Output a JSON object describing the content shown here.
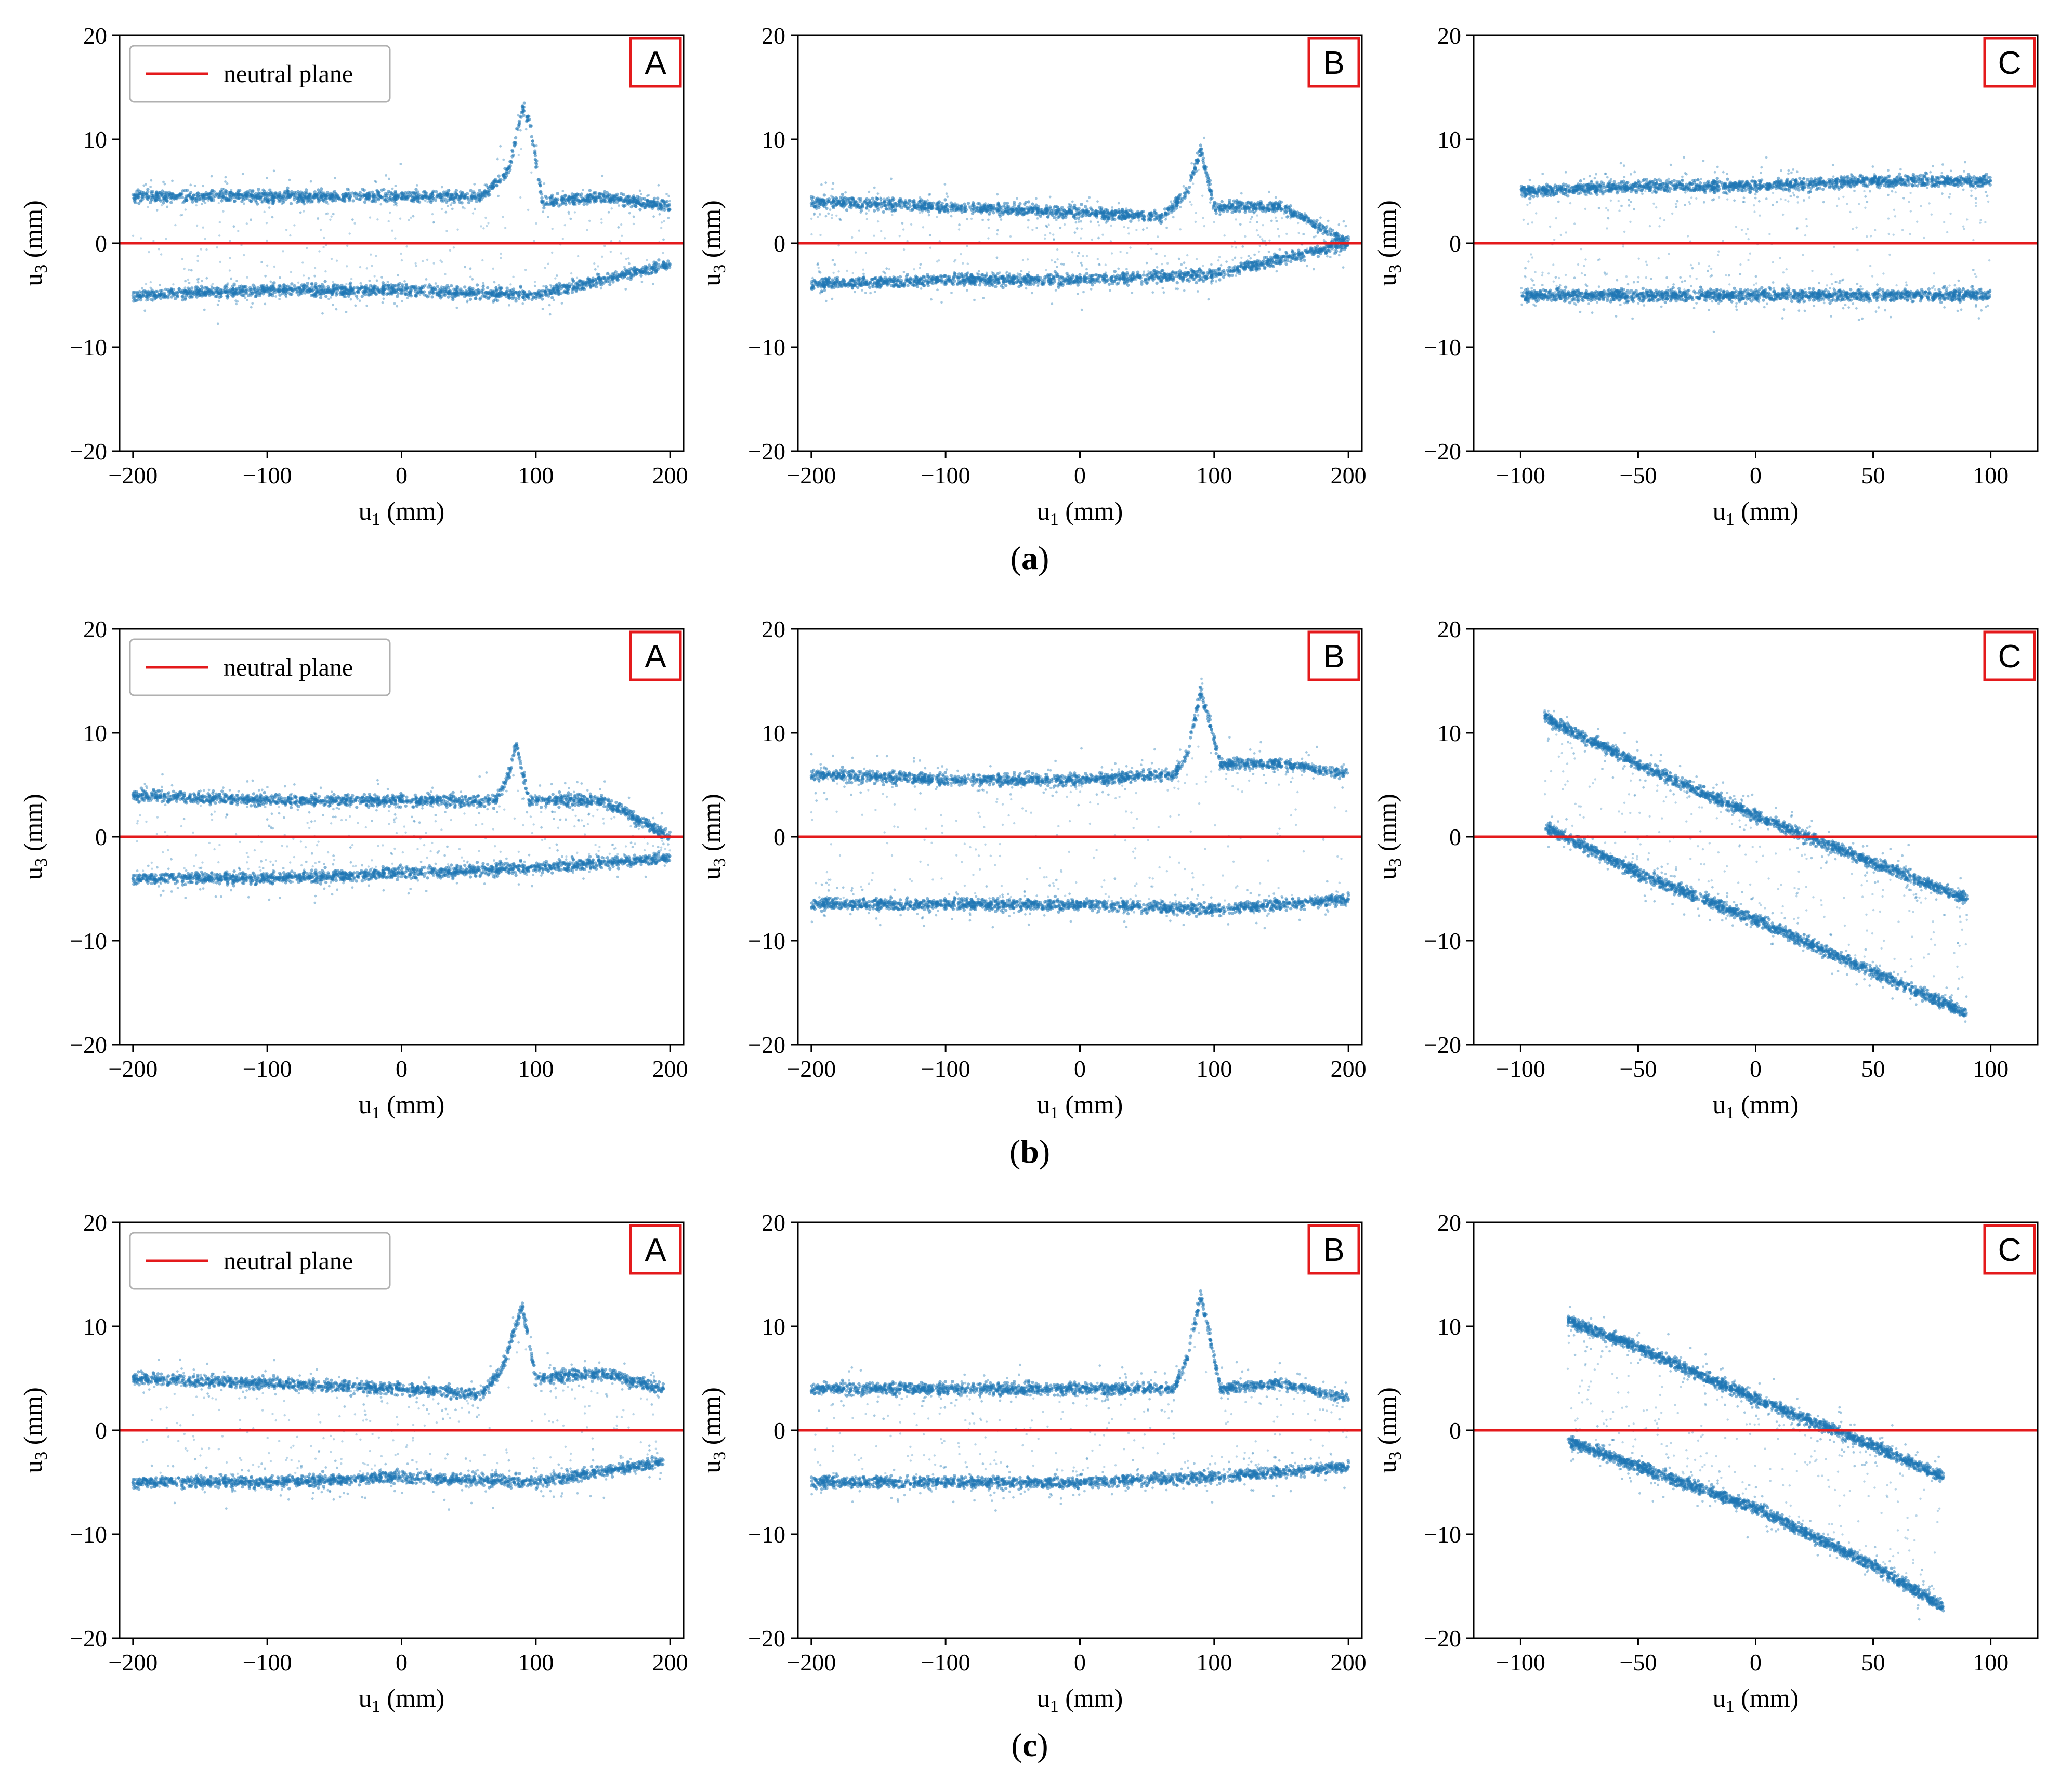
{
  "colors": {
    "points": "#1f77b4",
    "neutral": "#e41a1c",
    "panel_box": "#e41a1c",
    "axes": "#000000"
  },
  "axis_labels": {
    "x": "u",
    "x_sub": "1",
    "x_unit": " (mm)",
    "y": "u",
    "y_sub": "3",
    "y_unit": " (mm)"
  },
  "legend_label": "neutral plane",
  "chart_data": [
    {
      "row": "a",
      "caption_open": "(",
      "caption_letter": "a",
      "caption_close": ")",
      "panels": [
        {
          "id": "A",
          "type": "scatter",
          "title": "A",
          "legend": true,
          "xlim": [
            -210,
            210
          ],
          "ylim": [
            -20,
            20
          ],
          "xticks": [
            -200,
            -100,
            0,
            100,
            200
          ],
          "xtick_labels": [
            "−200",
            "−100",
            "0",
            "100",
            "200"
          ],
          "yticks": [
            -20,
            -10,
            0,
            10,
            20
          ],
          "ytick_labels": [
            "−20",
            "−10",
            "0",
            "10",
            "20"
          ],
          "series": [
            {
              "name": "upper band",
              "x": [
                -200,
                -100,
                0,
                60,
                80,
                90,
                95,
                105,
                150,
                200
              ],
              "y": [
                4.5,
                4.5,
                4.5,
                4.5,
                7,
                13,
                12,
                4,
                4.5,
                3.5
              ]
            },
            {
              "name": "lower band",
              "x": [
                -200,
                -100,
                0,
                100,
                200
              ],
              "y": [
                -5,
                -4.5,
                -4.5,
                -5,
                -2
              ]
            }
          ],
          "neutral_plane": 0
        },
        {
          "id": "B",
          "type": "scatter",
          "title": "B",
          "legend": false,
          "xlim": [
            -210,
            210
          ],
          "ylim": [
            -20,
            20
          ],
          "xticks": [
            -200,
            -100,
            0,
            100,
            200
          ],
          "xtick_labels": [
            "−200",
            "−100",
            "0",
            "100",
            "200"
          ],
          "yticks": [
            -20,
            -10,
            0,
            10,
            20
          ],
          "ytick_labels": [
            "−20",
            "−10",
            "0",
            "10",
            "20"
          ],
          "series": [
            {
              "name": "upper band",
              "x": [
                -200,
                -100,
                0,
                60,
                80,
                90,
                100,
                150,
                200
              ],
              "y": [
                4,
                3.5,
                3,
                2.5,
                5,
                9,
                3.5,
                3.5,
                0
              ]
            },
            {
              "name": "lower band",
              "x": [
                -200,
                -100,
                0,
                100,
                200
              ],
              "y": [
                -4,
                -3.5,
                -3.5,
                -3,
                0
              ]
            }
          ],
          "neutral_plane": 0
        },
        {
          "id": "C",
          "type": "scatter",
          "title": "C",
          "legend": false,
          "xlim": [
            -120,
            120
          ],
          "ylim": [
            -20,
            20
          ],
          "xticks": [
            -100,
            -50,
            0,
            50,
            100
          ],
          "xtick_labels": [
            "−100",
            "−50",
            "0",
            "50",
            "100"
          ],
          "yticks": [
            -20,
            -10,
            0,
            10,
            20
          ],
          "ytick_labels": [
            "−20",
            "−10",
            "0",
            "10",
            "20"
          ],
          "series": [
            {
              "name": "upper band",
              "x": [
                -100,
                -50,
                0,
                50,
                100
              ],
              "y": [
                5,
                5.5,
                5.5,
                6,
                6
              ]
            },
            {
              "name": "lower band",
              "x": [
                -100,
                -50,
                0,
                50,
                100
              ],
              "y": [
                -5,
                -5,
                -5,
                -5,
                -5
              ]
            }
          ],
          "neutral_plane": 0
        }
      ]
    },
    {
      "row": "b",
      "caption_open": "(",
      "caption_letter": "b",
      "caption_close": ")",
      "panels": [
        {
          "id": "A",
          "type": "scatter",
          "title": "A",
          "legend": true,
          "xlim": [
            -210,
            210
          ],
          "ylim": [
            -20,
            20
          ],
          "xticks": [
            -200,
            -100,
            0,
            100,
            200
          ],
          "xtick_labels": [
            "−200",
            "−100",
            "0",
            "100",
            "200"
          ],
          "yticks": [
            -20,
            -10,
            0,
            10,
            20
          ],
          "ytick_labels": [
            "−20",
            "−10",
            "0",
            "10",
            "20"
          ],
          "series": [
            {
              "name": "upper band",
              "x": [
                -200,
                -100,
                0,
                70,
                80,
                85,
                95,
                100,
                150,
                200
              ],
              "y": [
                4,
                3.5,
                3.5,
                3.5,
                6,
                9,
                3.5,
                3.5,
                3.5,
                0
              ]
            },
            {
              "name": "lower band",
              "x": [
                -200,
                -100,
                0,
                100,
                200
              ],
              "y": [
                -4,
                -4,
                -3.5,
                -3,
                -2
              ]
            }
          ],
          "neutral_plane": 0
        },
        {
          "id": "B",
          "type": "scatter",
          "title": "B",
          "legend": false,
          "xlim": [
            -210,
            210
          ],
          "ylim": [
            -20,
            20
          ],
          "xticks": [
            -200,
            -100,
            0,
            100,
            200
          ],
          "xtick_labels": [
            "−200",
            "−100",
            "0",
            "100",
            "200"
          ],
          "yticks": [
            -20,
            -10,
            0,
            10,
            20
          ],
          "ytick_labels": [
            "−20",
            "−10",
            "0",
            "10",
            "20"
          ],
          "series": [
            {
              "name": "upper band",
              "x": [
                -200,
                -100,
                0,
                70,
                80,
                90,
                105,
                150,
                200
              ],
              "y": [
                6,
                5.5,
                5.5,
                6,
                8,
                14,
                7,
                7,
                6
              ]
            },
            {
              "name": "lower band",
              "x": [
                -200,
                -100,
                0,
                100,
                200
              ],
              "y": [
                -6.5,
                -6.5,
                -6.5,
                -7,
                -6
              ]
            }
          ],
          "neutral_plane": 0
        },
        {
          "id": "C",
          "type": "scatter",
          "title": "C",
          "legend": false,
          "xlim": [
            -120,
            120
          ],
          "ylim": [
            -20,
            20
          ],
          "xticks": [
            -100,
            -50,
            0,
            50,
            100
          ],
          "xtick_labels": [
            "−100",
            "−50",
            "0",
            "50",
            "100"
          ],
          "yticks": [
            -20,
            -10,
            0,
            10,
            20
          ],
          "ytick_labels": [
            "−20",
            "−10",
            "0",
            "10",
            "20"
          ],
          "series": [
            {
              "name": "upper band",
              "x": [
                -90,
                -50,
                0,
                50,
                90
              ],
              "y": [
                11.5,
                7,
                2,
                -2.5,
                -6
              ]
            },
            {
              "name": "lower band",
              "x": [
                -90,
                -50,
                0,
                50,
                90
              ],
              "y": [
                1,
                -3.5,
                -8,
                -13,
                -17
              ]
            }
          ],
          "neutral_plane": 0
        }
      ]
    },
    {
      "row": "c",
      "caption_open": "(",
      "caption_letter": "c",
      "caption_close": ")",
      "panels": [
        {
          "id": "A",
          "type": "scatter",
          "title": "A",
          "legend": true,
          "xlim": [
            -210,
            210
          ],
          "ylim": [
            -20,
            20
          ],
          "xticks": [
            -200,
            -100,
            0,
            100,
            200
          ],
          "xtick_labels": [
            "−200",
            "−100",
            "0",
            "100",
            "200"
          ],
          "yticks": [
            -20,
            -10,
            0,
            10,
            20
          ],
          "ytick_labels": [
            "−20",
            "−10",
            "0",
            "10",
            "20"
          ],
          "series": [
            {
              "name": "upper band",
              "x": [
                -200,
                -100,
                0,
                60,
                75,
                90,
                100,
                150,
                195
              ],
              "y": [
                5,
                4.5,
                4,
                3.5,
                6,
                12,
                5,
                5.5,
                4
              ]
            },
            {
              "name": "lower band",
              "x": [
                -200,
                -100,
                0,
                100,
                195
              ],
              "y": [
                -5,
                -5,
                -4.5,
                -5,
                -3
              ]
            }
          ],
          "neutral_plane": 0
        },
        {
          "id": "B",
          "type": "scatter",
          "title": "B",
          "legend": false,
          "xlim": [
            -210,
            210
          ],
          "ylim": [
            -20,
            20
          ],
          "xticks": [
            -200,
            -100,
            0,
            100,
            200
          ],
          "xtick_labels": [
            "−200",
            "−100",
            "0",
            "100",
            "200"
          ],
          "yticks": [
            -20,
            -10,
            0,
            10,
            20
          ],
          "ytick_labels": [
            "−20",
            "−10",
            "0",
            "10",
            "20"
          ],
          "series": [
            {
              "name": "upper band",
              "x": [
                -200,
                -100,
                0,
                70,
                80,
                90,
                105,
                150,
                200
              ],
              "y": [
                4,
                4,
                4,
                4,
                7,
                13,
                4,
                4.5,
                3
              ]
            },
            {
              "name": "lower band",
              "x": [
                -200,
                -100,
                0,
                100,
                200
              ],
              "y": [
                -5,
                -5,
                -5,
                -4.5,
                -3.5
              ]
            }
          ],
          "neutral_plane": 0
        },
        {
          "id": "C",
          "type": "scatter",
          "title": "C",
          "legend": false,
          "xlim": [
            -120,
            120
          ],
          "ylim": [
            -20,
            20
          ],
          "xticks": [
            -100,
            -50,
            0,
            50,
            100
          ],
          "xtick_labels": [
            "−100",
            "−50",
            "0",
            "50",
            "100"
          ],
          "yticks": [
            -20,
            -10,
            0,
            10,
            20
          ],
          "ytick_labels": [
            "−20",
            "−10",
            "0",
            "10",
            "20"
          ],
          "series": [
            {
              "name": "upper band",
              "x": [
                -80,
                -50,
                0,
                50,
                80
              ],
              "y": [
                10.5,
                8,
                3,
                -1.5,
                -4.5
              ]
            },
            {
              "name": "lower band",
              "x": [
                -80,
                -50,
                0,
                50,
                80
              ],
              "y": [
                -1,
                -3.5,
                -7.5,
                -13,
                -17
              ]
            }
          ],
          "neutral_plane": 0
        }
      ]
    }
  ]
}
